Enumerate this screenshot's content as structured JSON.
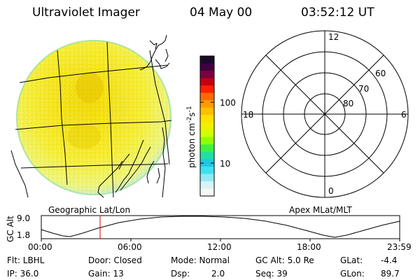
{
  "header": {
    "title": "Ultraviolet Imager",
    "date": "04 May 00",
    "time": "03:52:12 UT"
  },
  "image_panel": {
    "label": "Geographic Lat/Lon"
  },
  "colorbar": {
    "unit_main": "photon cm",
    "unit_sup1": "-2",
    "unit_mid": "s",
    "unit_sup2": "-1",
    "tick_100": "100",
    "tick_10": "10",
    "colors": [
      "#1a0a2a",
      "#400040",
      "#7a0040",
      "#c40010",
      "#ff2000",
      "#ff6a00",
      "#ff9a00",
      "#ffc000",
      "#ffe000",
      "#f0f000",
      "#d0ff00",
      "#90ff00",
      "#40f040",
      "#20e0a0",
      "#20c8e0",
      "#40e0f0",
      "#90eaf5",
      "#d8f2f6",
      "#f6f6f6"
    ]
  },
  "polar_plot": {
    "label": "Apex MLat/MLT",
    "mlt_top": "12",
    "mlt_bottom": "0",
    "mlt_left": "18",
    "mlt_right": "6",
    "lat_60": "60",
    "lat_70": "70",
    "lat_80": "80"
  },
  "altitude": {
    "axis_label": "GC Alt",
    "y_max": "9.0",
    "y_min": "1.8",
    "x_ticks": [
      "00:00",
      "06:00",
      "12:00",
      "18:00",
      "23:59"
    ]
  },
  "info": {
    "flt": "Flt: LBHL",
    "ip": "IP: 36.0",
    "door": "Door: Closed",
    "gain": "Gain: 13",
    "mode": "Mode: Normal",
    "dsp_label": "Dsp:",
    "dsp_value": "2.0",
    "gc_alt": "GC Alt: 5.0 Re",
    "seq": "Seq: 39",
    "glat_label": "GLat:",
    "glat_value": "-4.4",
    "glon_label": "GLon:",
    "glon_value": "89.7"
  }
}
